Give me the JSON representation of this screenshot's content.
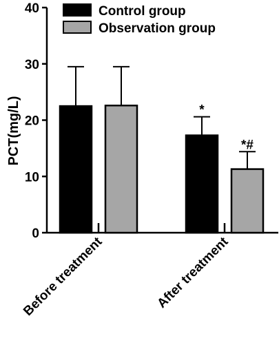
{
  "chart_data": {
    "type": "bar",
    "categories": [
      "Before treatment",
      "After treatment"
    ],
    "series": [
      {
        "name": "Control group",
        "values": [
          22.5,
          17.3
        ],
        "errors": [
          7.0,
          3.3
        ],
        "color": "#000000"
      },
      {
        "name": "Observation group",
        "values": [
          22.6,
          11.3
        ],
        "errors": [
          6.9,
          3.1
        ],
        "color": "#a6a6a6"
      }
    ],
    "annotations": [
      {
        "category": "After treatment",
        "series": "Control group",
        "text": "*"
      },
      {
        "category": "After treatment",
        "series": "Observation group",
        "text": "*#"
      }
    ],
    "title": "",
    "xlabel": "",
    "ylabel": "PCT(mg/L)",
    "ylim": [
      0,
      40
    ],
    "yticks": [
      0,
      10,
      20,
      30,
      40
    ],
    "legend_position": "top",
    "grid": false
  }
}
